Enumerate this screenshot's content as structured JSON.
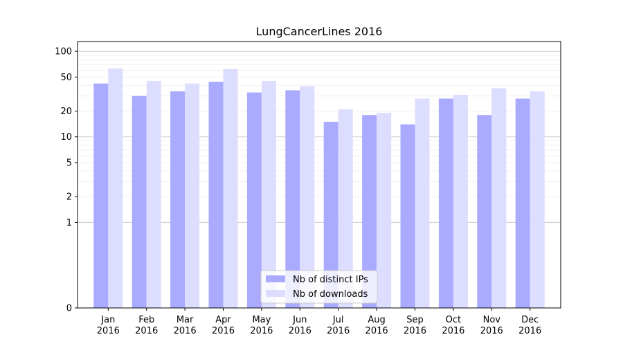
{
  "chart_data": {
    "type": "bar",
    "title": "LungCancerLines 2016",
    "xlabel": "",
    "ylabel": "",
    "yscale": "symlog",
    "ylim": [
      0,
      130
    ],
    "yticks": [
      0,
      1,
      2,
      5,
      10,
      20,
      50,
      100
    ],
    "grid": "y",
    "legend_position": "bottom-center",
    "categories": [
      [
        "Jan",
        "2016"
      ],
      [
        "Feb",
        "2016"
      ],
      [
        "Mar",
        "2016"
      ],
      [
        "Apr",
        "2016"
      ],
      [
        "May",
        "2016"
      ],
      [
        "Jun",
        "2016"
      ],
      [
        "Jul",
        "2016"
      ],
      [
        "Aug",
        "2016"
      ],
      [
        "Sep",
        "2016"
      ],
      [
        "Oct",
        "2016"
      ],
      [
        "Nov",
        "2016"
      ],
      [
        "Dec",
        "2016"
      ]
    ],
    "series": [
      {
        "name": "Nb of distinct IPs",
        "color": "#aaaaff",
        "values": [
          42,
          30,
          34,
          44,
          33,
          35,
          15,
          18,
          14,
          28,
          18,
          28
        ]
      },
      {
        "name": "Nb of downloads",
        "color": "#ddddff",
        "values": [
          63,
          45,
          42,
          62,
          45,
          39,
          21,
          19,
          28,
          31,
          37,
          34
        ]
      }
    ]
  }
}
